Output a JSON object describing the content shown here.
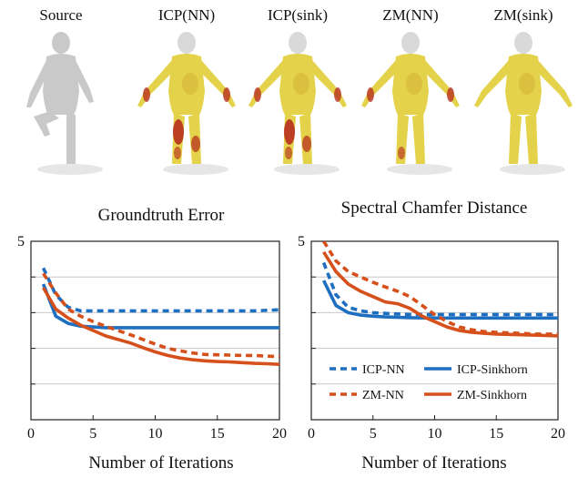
{
  "meshes": {
    "labels": [
      "Source",
      "ICP(NN)",
      "ICP(sink)",
      "ZM(NN)",
      "ZM(sink)"
    ],
    "pose": [
      "leg-raised",
      "t-pose",
      "t-pose",
      "t-pose",
      "t-pose"
    ],
    "error_level": [
      0,
      0.9,
      0.75,
      0.5,
      0.2
    ],
    "colors": {
      "gray": "#c9c9c9",
      "yellow": "#e3d24a",
      "red": "#b5261c"
    }
  },
  "colors": {
    "icp": "#1f6fc1",
    "zm": "#d6501c"
  },
  "chart_data": [
    {
      "type": "line",
      "title": "Groundtruth Error",
      "xlabel": "Number of Iterations",
      "ylabel": "",
      "xlim": [
        0,
        20
      ],
      "ylim": [
        0,
        5
      ],
      "xticks": [
        0,
        5,
        10,
        15,
        20
      ],
      "xtick_labels": [
        "0",
        "5",
        "10",
        "15",
        "20"
      ],
      "yticks": [
        0,
        1,
        2,
        3,
        4,
        5
      ],
      "ytick_labels": [
        "",
        "",
        "",
        "",
        "",
        "5"
      ],
      "grid": "horizontal",
      "legend": "",
      "series": [
        {
          "name": "ICP-NN",
          "style": "dashed",
          "color": "#1f6fc1",
          "x": [
            1,
            2,
            3,
            4,
            5,
            6,
            8,
            10,
            12,
            14,
            16,
            18,
            20
          ],
          "y": [
            4.25,
            3.5,
            3.15,
            3.05,
            3.05,
            3.05,
            3.05,
            3.05,
            3.05,
            3.05,
            3.05,
            3.05,
            3.08
          ]
        },
        {
          "name": "ICP-Sinkhorn",
          "style": "solid",
          "color": "#1f6fc1",
          "x": [
            1,
            2,
            3,
            4,
            5,
            6,
            8,
            10,
            12,
            14,
            16,
            18,
            20
          ],
          "y": [
            3.8,
            2.9,
            2.7,
            2.62,
            2.6,
            2.58,
            2.58,
            2.58,
            2.58,
            2.58,
            2.58,
            2.58,
            2.58
          ]
        },
        {
          "name": "ZM-NN",
          "style": "dashed",
          "color": "#d6501c",
          "x": [
            1,
            2,
            3,
            4,
            5,
            6,
            7,
            8,
            9,
            10,
            11,
            12,
            13,
            14,
            15,
            16,
            17,
            18,
            19,
            20
          ],
          "y": [
            4.1,
            3.55,
            3.1,
            2.9,
            2.75,
            2.62,
            2.5,
            2.38,
            2.25,
            2.12,
            2.0,
            1.93,
            1.87,
            1.83,
            1.82,
            1.81,
            1.8,
            1.8,
            1.78,
            1.77
          ]
        },
        {
          "name": "ZM-Sinkhorn",
          "style": "solid",
          "color": "#d6501c",
          "x": [
            1,
            2,
            3,
            4,
            5,
            6,
            7,
            8,
            9,
            10,
            11,
            12,
            13,
            14,
            15,
            16,
            17,
            18,
            19,
            20
          ],
          "y": [
            3.7,
            3.1,
            2.85,
            2.65,
            2.5,
            2.35,
            2.25,
            2.15,
            2.02,
            1.9,
            1.8,
            1.73,
            1.68,
            1.65,
            1.63,
            1.62,
            1.6,
            1.58,
            1.57,
            1.55
          ]
        }
      ]
    },
    {
      "type": "line",
      "title": "Spectral Chamfer Distance",
      "xlabel": "Number of Iterations",
      "ylabel": "",
      "xlim": [
        0,
        20
      ],
      "ylim": [
        0,
        5
      ],
      "xticks": [
        0,
        5,
        10,
        15,
        20
      ],
      "xtick_labels": [
        "0",
        "5",
        "10",
        "15",
        "20"
      ],
      "yticks": [
        0,
        1,
        2,
        3,
        4,
        5
      ],
      "ytick_labels": [
        "",
        "",
        "",
        "",
        "",
        "5"
      ],
      "grid": "horizontal",
      "legend": "lower-right",
      "series": [
        {
          "name": "ICP-NN",
          "style": "dashed",
          "color": "#1f6fc1",
          "x": [
            1,
            2,
            3,
            4,
            5,
            6,
            8,
            10,
            12,
            14,
            16,
            18,
            20
          ],
          "y": [
            4.4,
            3.5,
            3.15,
            3.05,
            3.0,
            2.98,
            2.95,
            2.95,
            2.95,
            2.95,
            2.95,
            2.95,
            2.95
          ]
        },
        {
          "name": "ICP-Sinkhorn",
          "style": "solid",
          "color": "#1f6fc1",
          "x": [
            1,
            2,
            3,
            4,
            5,
            6,
            8,
            10,
            12,
            14,
            16,
            18,
            20
          ],
          "y": [
            3.9,
            3.2,
            3.0,
            2.93,
            2.9,
            2.88,
            2.86,
            2.85,
            2.85,
            2.85,
            2.85,
            2.85,
            2.85
          ]
        },
        {
          "name": "ZM-NN",
          "style": "dashed",
          "color": "#d6501c",
          "x": [
            1,
            2,
            3,
            4,
            5,
            6,
            7,
            8,
            9,
            10,
            11,
            12,
            13,
            14,
            15,
            16,
            17,
            18,
            19,
            20
          ],
          "y": [
            5.0,
            4.45,
            4.15,
            4.0,
            3.85,
            3.72,
            3.6,
            3.45,
            3.2,
            2.95,
            2.75,
            2.6,
            2.52,
            2.47,
            2.45,
            2.43,
            2.42,
            2.4,
            2.4,
            2.4
          ]
        },
        {
          "name": "ZM-Sinkhorn",
          "style": "solid",
          "color": "#d6501c",
          "x": [
            1,
            2,
            3,
            4,
            5,
            6,
            7,
            8,
            9,
            10,
            11,
            12,
            13,
            14,
            15,
            16,
            17,
            18,
            19,
            20
          ],
          "y": [
            4.7,
            4.15,
            3.8,
            3.6,
            3.45,
            3.3,
            3.25,
            3.12,
            2.9,
            2.75,
            2.6,
            2.5,
            2.45,
            2.42,
            2.4,
            2.39,
            2.38,
            2.37,
            2.36,
            2.35
          ]
        }
      ]
    }
  ]
}
